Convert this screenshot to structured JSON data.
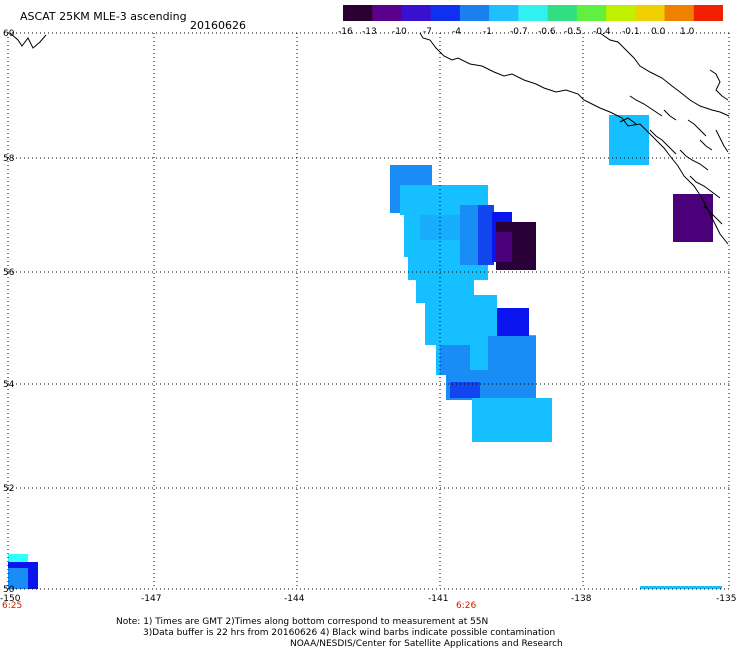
{
  "header": {
    "title": "ASCAT 25KM MLE-3 ascending",
    "date": "20160626"
  },
  "colorbar": {
    "labels": [
      "-16",
      "-13",
      "-10",
      "-7",
      "-4",
      "-1",
      "-0.7",
      "-0.6",
      "-0.5",
      "-0.4",
      "-0.1",
      "0.0",
      "1.0"
    ],
    "colors": [
      "#2a0030",
      "#5a008a",
      "#3a10d0",
      "#1030f0",
      "#1a80f0",
      "#20c0ff",
      "#30f0f0",
      "#30e080",
      "#60f040",
      "#c0f000",
      "#f0d000",
      "#f08000",
      "#f02000"
    ]
  },
  "axes": {
    "lat_labels": [
      "60",
      "58",
      "56",
      "54",
      "52",
      "50"
    ],
    "lon_labels": [
      "-150",
      "-147",
      "-144",
      "-141",
      "-138",
      "-135"
    ],
    "time_labels": [
      "6:25",
      "6:26"
    ]
  },
  "notes": {
    "line1": "Note: 1) Times are GMT 2)Times along bottom correspond to measurement at 55N",
    "line2": "3)Data buffer is 22 hrs from 20160626 4) Black wind barbs indicate possible contamination",
    "line3": "NOAA/NESDIS/Center for Satellite Applications and Research"
  },
  "colors": {
    "light_blue": "#16bfff",
    "mid_blue": "#1a8cf5",
    "blue": "#1045f0",
    "royal_blue": "#0a14ef",
    "dark_purple": "#2a0038",
    "purple": "#4a0078",
    "cyan": "#30ffff"
  }
}
